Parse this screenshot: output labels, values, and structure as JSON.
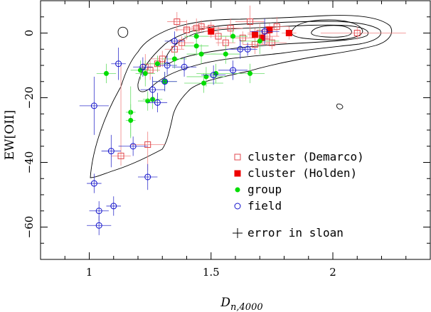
{
  "chart_data": {
    "type": "scatter",
    "xlabel": "Dn,4000",
    "ylabel": "EW[OII]",
    "xlim": [
      0.8,
      2.4
    ],
    "ylim": [
      -70,
      10
    ],
    "xticks": [
      1,
      1.5,
      2
    ],
    "xtick_labels": [
      "1",
      "1.5",
      "2"
    ],
    "yticks": [
      0,
      -20,
      -40,
      -60
    ],
    "ytick_labels": [
      "0",
      "−20",
      "−40",
      "−60"
    ],
    "legend_position": "lower-right",
    "legend": [
      {
        "label": "cluster (Demarco)",
        "marker": "open-square",
        "color": "#e0474c"
      },
      {
        "label": "cluster (Holden)",
        "marker": "filled-square",
        "color": "#ee0000"
      },
      {
        "label": "group",
        "marker": "filled-circle",
        "color": "#00dd00"
      },
      {
        "label": "field",
        "marker": "open-circle",
        "color": "#1010cc"
      },
      {
        "label": "error in sloan",
        "marker": "cross",
        "color": "#000000"
      }
    ],
    "error_in_sloan": {
      "xerr": 0.02,
      "yerr": 1.5
    },
    "series": [
      {
        "name": "cluster (Demarco)",
        "points": [
          [
            1.13,
            -38,
            0.04,
            3,
            0.04,
            28
          ],
          [
            1.24,
            -34.5,
            0.07,
            8,
            0.07,
            4
          ],
          [
            1.23,
            -10.5,
            0.03,
            4,
            0.03,
            4
          ],
          [
            1.25,
            -11.5,
            0.04,
            3,
            0.04,
            3
          ],
          [
            1.28,
            -9.5,
            0.04,
            2.5,
            0.04,
            2.5
          ],
          [
            1.3,
            -8,
            0.05,
            2.5,
            0.05,
            2.5
          ],
          [
            1.35,
            -5,
            0.04,
            2.5,
            0.04,
            2.5
          ],
          [
            1.38,
            -3,
            0.05,
            2,
            0.05,
            2
          ],
          [
            1.4,
            1,
            0.05,
            3,
            0.05,
            3
          ],
          [
            1.44,
            1.5,
            0.05,
            3,
            0.05,
            3
          ],
          [
            1.46,
            2,
            0.04,
            2,
            0.04,
            2
          ],
          [
            1.5,
            1.5,
            0.04,
            2,
            0.04,
            2
          ],
          [
            1.53,
            -1,
            0.04,
            3,
            0.04,
            3
          ],
          [
            1.56,
            -3,
            0.04,
            2,
            0.04,
            2
          ],
          [
            1.58,
            1.5,
            0.05,
            3,
            0.05,
            3
          ],
          [
            1.63,
            -1.5,
            0.05,
            2,
            0.05,
            2
          ],
          [
            1.66,
            3.5,
            0.06,
            5,
            0.06,
            5
          ],
          [
            1.68,
            -3.5,
            0.05,
            3,
            0.05,
            3
          ],
          [
            1.7,
            0,
            0.05,
            3,
            0.05,
            3
          ],
          [
            1.73,
            -1,
            0.05,
            3,
            0.05,
            3
          ],
          [
            1.75,
            -3,
            0.06,
            2,
            0.06,
            2
          ],
          [
            1.77,
            2,
            0.05,
            3,
            0.05,
            3
          ],
          [
            2.1,
            0,
            0.15,
            2,
            0.2,
            2
          ],
          [
            1.36,
            3.5,
            0.04,
            3,
            0.04,
            3
          ]
        ]
      },
      {
        "name": "cluster (Holden)",
        "points": [
          [
            1.5,
            0.5,
            0.03,
            2,
            0.03,
            2
          ],
          [
            1.68,
            -0.5,
            0.03,
            2,
            0.03,
            2
          ],
          [
            1.71,
            -1.5,
            0.03,
            2,
            0.03,
            2
          ],
          [
            1.74,
            1,
            0.03,
            2,
            0.03,
            2
          ],
          [
            1.82,
            0,
            0.03,
            2,
            0.03,
            2
          ]
        ]
      },
      {
        "name": "group",
        "points": [
          [
            1.07,
            -12.5,
            0.04,
            3,
            0.04,
            3
          ],
          [
            1.17,
            -24.5,
            0.02,
            8,
            0.02,
            8
          ],
          [
            1.17,
            -27,
            0.02,
            5,
            0.02,
            5
          ],
          [
            1.21,
            -11.5,
            0.04,
            3,
            0.04,
            3
          ],
          [
            1.23,
            -12.5,
            0.04,
            4,
            0.04,
            4
          ],
          [
            1.24,
            -21,
            0.04,
            3,
            0.04,
            3
          ],
          [
            1.26,
            -20.5,
            0.04,
            3,
            0.04,
            3
          ],
          [
            1.28,
            -9.5,
            0.04,
            2.5,
            0.04,
            2.5
          ],
          [
            1.31,
            -15,
            0.05,
            3,
            0.05,
            3
          ],
          [
            1.35,
            -8,
            0.05,
            3,
            0.05,
            3
          ],
          [
            1.44,
            -4,
            0.05,
            3,
            0.05,
            3
          ],
          [
            1.46,
            -6.5,
            0.06,
            3,
            0.06,
            3
          ],
          [
            1.48,
            -13.5,
            0.08,
            3,
            0.08,
            3
          ],
          [
            1.47,
            -15.5,
            0.08,
            3,
            0.08,
            3
          ],
          [
            1.52,
            -12.5,
            0.08,
            3,
            0.08,
            3
          ],
          [
            1.56,
            -6.5,
            0.06,
            3,
            0.06,
            3
          ],
          [
            1.59,
            -1,
            0.06,
            2,
            0.06,
            2
          ],
          [
            1.66,
            -12.5,
            0.06,
            3,
            0.06,
            3
          ],
          [
            1.7,
            -2.5,
            0.08,
            4,
            0.08,
            4
          ],
          [
            1.44,
            -1,
            0.05,
            2,
            0.05,
            2
          ]
        ]
      },
      {
        "name": "field",
        "points": [
          [
            1.02,
            -22.5,
            0.06,
            9,
            0.06,
            9
          ],
          [
            1.02,
            -46.5,
            0.03,
            3,
            0.03,
            3
          ],
          [
            1.04,
            -55,
            0.04,
            3,
            0.04,
            3
          ],
          [
            1.04,
            -59.5,
            0.05,
            3,
            0.05,
            3
          ],
          [
            1.09,
            -36.5,
            0.04,
            5,
            0.04,
            5
          ],
          [
            1.1,
            -53.5,
            0.03,
            3,
            0.03,
            3
          ],
          [
            1.12,
            -9.5,
            0.03,
            5,
            0.03,
            5
          ],
          [
            1.18,
            -35,
            0.06,
            3,
            0.06,
            3
          ],
          [
            1.22,
            -10.5,
            0.04,
            3,
            0.04,
            3
          ],
          [
            1.24,
            -44.5,
            0.04,
            4,
            0.04,
            4
          ],
          [
            1.26,
            -17.5,
            0.05,
            4,
            0.05,
            4
          ],
          [
            1.28,
            -21.5,
            0.04,
            3,
            0.04,
            3
          ],
          [
            1.32,
            -10,
            0.04,
            3,
            0.04,
            3
          ],
          [
            1.31,
            -15,
            0.05,
            3,
            0.05,
            3
          ],
          [
            1.35,
            -2.5,
            0.04,
            3,
            0.04,
            3
          ],
          [
            1.39,
            -10.5,
            0.05,
            3,
            0.05,
            3
          ],
          [
            1.51,
            -13,
            0.05,
            3,
            0.05,
            3
          ],
          [
            1.59,
            -11.5,
            0.06,
            3,
            0.06,
            3
          ],
          [
            1.62,
            -5,
            0.06,
            3,
            0.06,
            3
          ],
          [
            1.72,
            0.5,
            0.06,
            4,
            0.06,
            4
          ],
          [
            1.65,
            -5,
            0.04,
            2,
            0.04,
            2
          ]
        ]
      }
    ]
  }
}
